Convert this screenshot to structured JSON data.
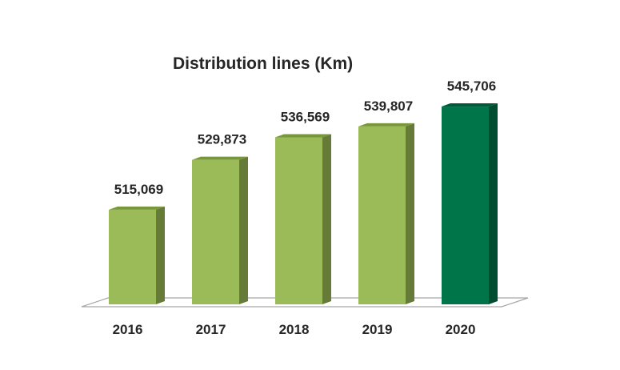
{
  "chart_data": {
    "type": "bar",
    "title": "Distribution lines (Km)",
    "xlabel": "",
    "ylabel": "",
    "categories": [
      "2016",
      "2017",
      "2018",
      "2019",
      "2020"
    ],
    "values": [
      515069,
      529873,
      536569,
      539807,
      545706
    ],
    "value_labels": [
      "515,069",
      "529,873",
      "536,569",
      "539,807",
      "545,706"
    ],
    "ylim": [
      487000,
      550000
    ],
    "grid": false,
    "legend": "none",
    "style": "3d-column",
    "colors": {
      "default_front": "#9BBB59",
      "default_side": "#657B37",
      "default_top": "#78963C",
      "highlight_front": "#00754A",
      "highlight_side": "#004D31",
      "highlight_top": "#005A39",
      "floor_stroke": "#A6A6A6",
      "text": "#262626"
    },
    "highlight_index": 4
  }
}
